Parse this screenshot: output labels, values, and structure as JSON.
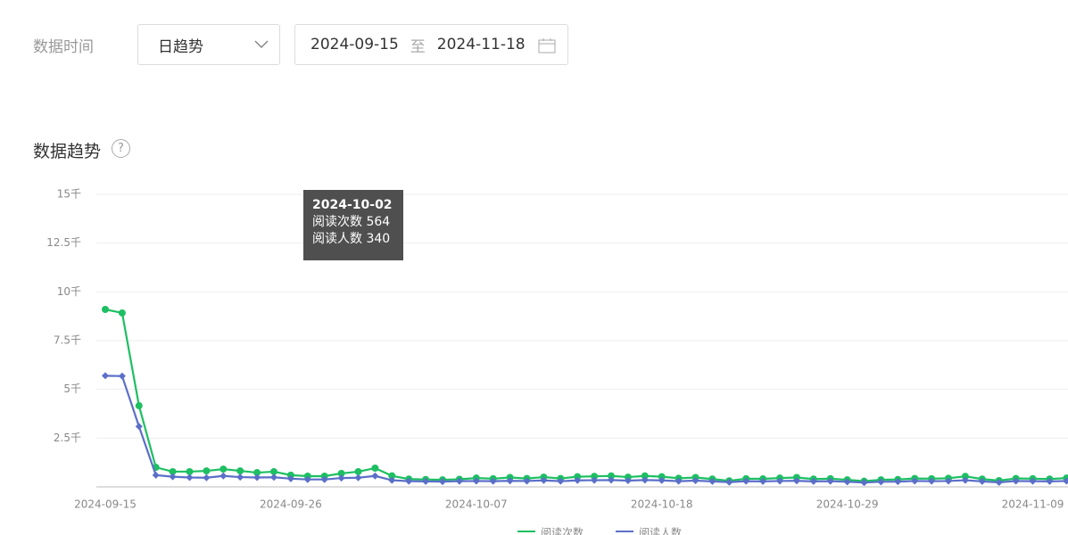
{
  "filter": {
    "label": "数据时间",
    "granularity": "日趋势",
    "start": "2024-09-15",
    "separator": "至",
    "end": "2024-11-18"
  },
  "section": {
    "title": "数据趋势",
    "help": "?"
  },
  "tooltip": {
    "date": "2024-10-02"
  },
  "chart_data": {
    "type": "line",
    "categories": [
      "2024-09-15",
      null,
      null,
      null,
      null,
      null,
      null,
      null,
      null,
      null,
      null,
      "2024-09-26",
      null,
      null,
      null,
      null,
      null,
      null,
      null,
      null,
      null,
      null,
      "2024-10-07",
      null,
      null,
      null,
      null,
      null,
      null,
      null,
      null,
      null,
      null,
      "2024-10-18",
      null,
      null,
      null,
      null,
      null,
      null,
      null,
      null,
      null,
      null,
      "2024-10-29",
      null,
      null,
      null,
      null,
      null,
      null,
      null,
      null,
      null,
      null,
      "2024-11-09",
      null,
      null
    ],
    "series": [
      {
        "name": "阅读次数",
        "color": "#1dbf62",
        "marker": "circle",
        "values": [
          9100,
          8920,
          4160,
          1000,
          780,
          780,
          820,
          910,
          820,
          730,
          780,
          600,
          550,
          550,
          690,
          780,
          960,
          564,
          400,
          380,
          360,
          390,
          450,
          420,
          480,
          430,
          500,
          430,
          520,
          540,
          560,
          500,
          560,
          520,
          440,
          480,
          400,
          310,
          420,
          410,
          450,
          480,
          400,
          420,
          360,
          290,
          360,
          380,
          430,
          420,
          440,
          540,
          400,
          320,
          430,
          420,
          400,
          450
        ]
      },
      {
        "name": "阅读人数",
        "color": "#5b6fc8",
        "marker": "diamond",
        "values": [
          5700,
          5680,
          3100,
          600,
          520,
          480,
          470,
          560,
          500,
          480,
          490,
          420,
          380,
          380,
          450,
          470,
          560,
          340,
          290,
          280,
          270,
          290,
          300,
          290,
          310,
          300,
          330,
          290,
          330,
          340,
          350,
          320,
          350,
          330,
          290,
          320,
          280,
          240,
          290,
          280,
          300,
          310,
          280,
          290,
          260,
          220,
          260,
          270,
          300,
          290,
          300,
          340,
          280,
          230,
          300,
          290,
          280,
          300
        ]
      }
    ],
    "ylim": [
      0,
      15000
    ],
    "yticks": [
      {
        "value": 2500,
        "label": "2.5千"
      },
      {
        "value": 5000,
        "label": "5千"
      },
      {
        "value": 7500,
        "label": "7.5千"
      },
      {
        "value": 10000,
        "label": "10千"
      },
      {
        "value": 12500,
        "label": "12.5千"
      },
      {
        "value": 15000,
        "label": "15千"
      }
    ],
    "grid": true
  }
}
